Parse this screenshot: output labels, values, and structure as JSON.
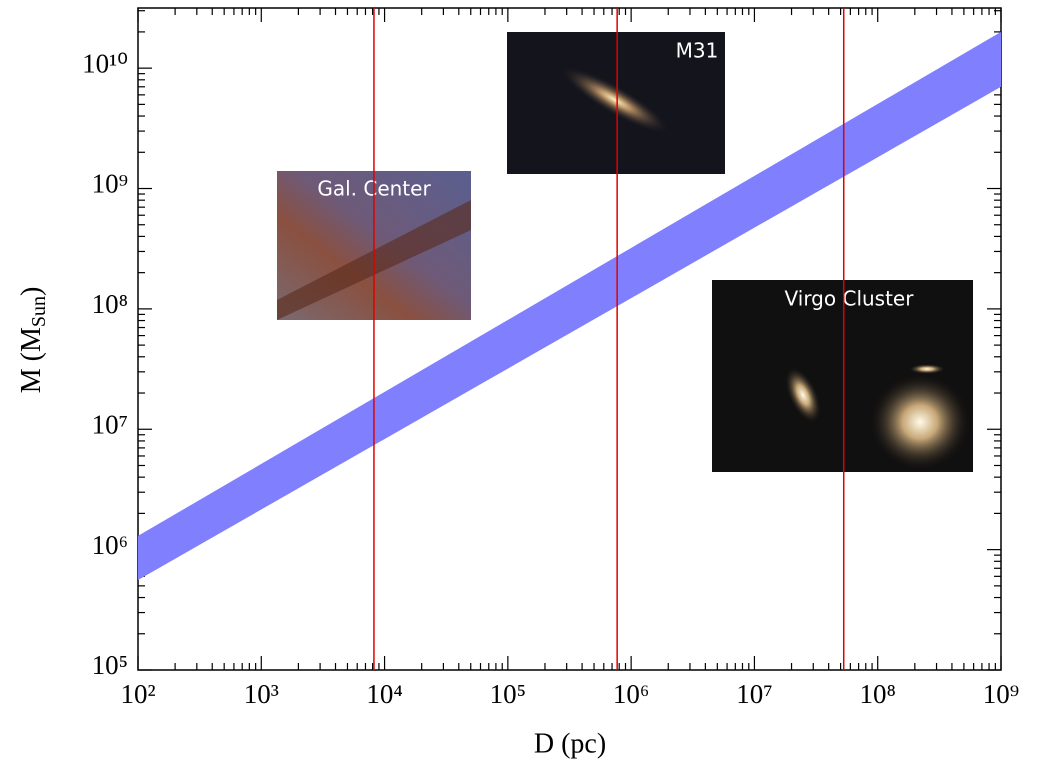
{
  "chart_data": {
    "type": "band",
    "x_label": "D (pc)",
    "y_label": [
      "M (M",
      "Sun",
      ")"
    ],
    "xscale": "log",
    "yscale": "log",
    "xlim": [
      100,
      1000000000
    ],
    "ylim": [
      100000,
      31600000000
    ],
    "xticks": [
      {
        "value": 100,
        "label": "10²"
      },
      {
        "value": 1000,
        "label": "10³"
      },
      {
        "value": 10000,
        "label": "10⁴"
      },
      {
        "value": 100000,
        "label": "10⁵"
      },
      {
        "value": 1000000,
        "label": "10⁶"
      },
      {
        "value": 10000000,
        "label": "10⁷"
      },
      {
        "value": 100000000,
        "label": "10⁸"
      },
      {
        "value": 1000000000,
        "label": "10⁹"
      }
    ],
    "yticks": [
      {
        "value": 100000,
        "label": "10⁵"
      },
      {
        "value": 1000000,
        "label": "10⁶"
      },
      {
        "value": 10000000,
        "label": "10⁷"
      },
      {
        "value": 100000000,
        "label": "10⁸"
      },
      {
        "value": 1000000000,
        "label": "10⁹"
      },
      {
        "value": 10000000000,
        "label": "10¹⁰"
      }
    ],
    "minor_ticks": true,
    "band": {
      "color": "#8080ff",
      "x": [
        100,
        1000000000
      ],
      "lower": [
        560000,
        7000000000
      ],
      "upper": [
        1300000,
        20000000000
      ]
    },
    "vlines": {
      "color": "#e00000",
      "x": [
        8200,
        770000,
        53000000
      ]
    },
    "insets": [
      {
        "label": "Gal. Center"
      },
      {
        "label": "M31"
      },
      {
        "label": "Virgo Cluster"
      }
    ]
  }
}
